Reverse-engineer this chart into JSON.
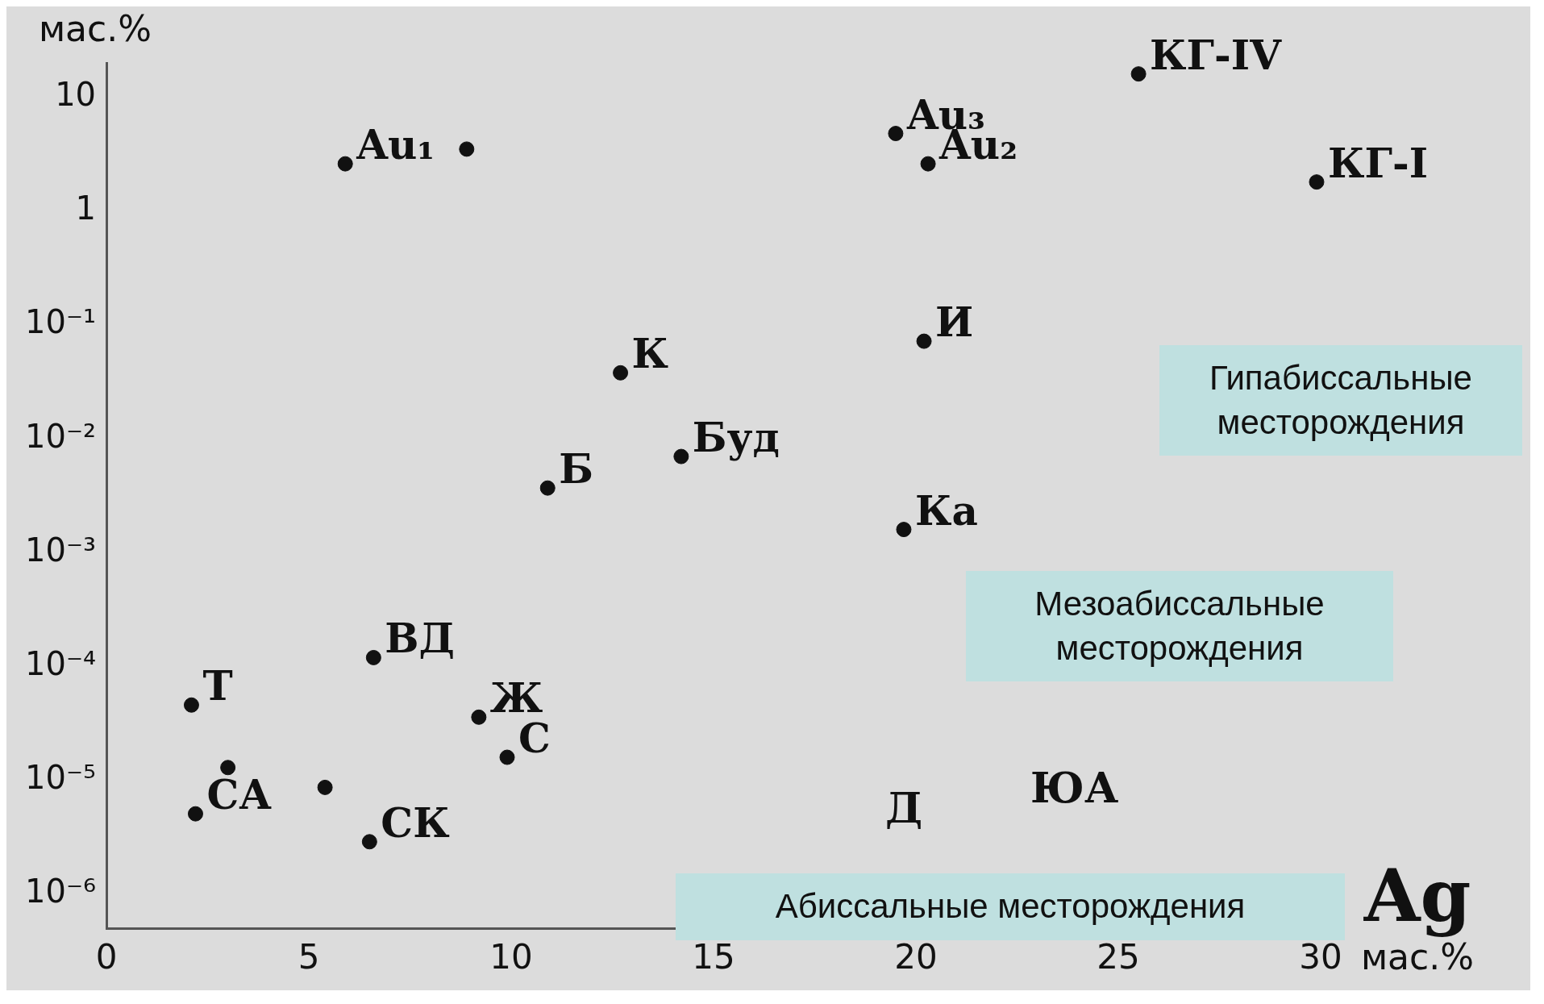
{
  "chart_data": {
    "type": "scatter",
    "xlabel": "Ag мас.%",
    "ylabel": "мас.%",
    "log": "y",
    "xlim": [
      0,
      30
    ],
    "xticks": [
      0,
      5,
      10,
      15,
      20,
      25,
      30
    ],
    "ylim": [
      5e-07,
      20
    ],
    "yticks": [
      {
        "value": 1e-06,
        "label": "10⁻⁶"
      },
      {
        "value": 1e-05,
        "label": "10⁻⁵"
      },
      {
        "value": 0.0001,
        "label": "10⁻⁴"
      },
      {
        "value": 0.001,
        "label": "10⁻³"
      },
      {
        "value": 0.01,
        "label": "10⁻²"
      },
      {
        "value": 0.1,
        "label": "10⁻¹"
      },
      1,
      10
    ],
    "grid": false,
    "legend": false,
    "marker": "circle",
    "series": [
      {
        "color": "#111111",
        "x": [
          5.9,
          8.9,
          19.5,
          20.3,
          25.5,
          29.9,
          12.7,
          20.2,
          14.2,
          10.9,
          19.7,
          6.6,
          2.1,
          9.2,
          9.9,
          3.0,
          5.4,
          2.2,
          6.5
        ],
        "values": [
          2.6,
          3.5,
          4.8,
          2.6,
          16,
          1.8,
          0.038,
          0.072,
          0.007,
          0.0037,
          0.0016,
          0.00012,
          4.6e-05,
          3.6e-05,
          1.6e-05,
          1.3e-05,
          8.7e-06,
          5.1e-06,
          2.9e-06
        ]
      }
    ],
    "annotations": [
      {
        "text": "Au₁",
        "x": 5.9,
        "y": 2.6
      },
      {
        "text": "Au₂",
        "x": 20.3,
        "y": 2.6
      },
      {
        "text": "Au₃",
        "x": 19.5,
        "y": 4.8
      },
      {
        "text": "КГ-IV",
        "x": 25.5,
        "y": 16
      },
      {
        "text": "КГ-I",
        "x": 29.9,
        "y": 1.8
      },
      {
        "text": "К",
        "x": 12.7,
        "y": 0.038
      },
      {
        "text": "И",
        "x": 20.2,
        "y": 0.072
      },
      {
        "text": "Буд",
        "x": 14.2,
        "y": 0.007
      },
      {
        "text": "Б",
        "x": 10.9,
        "y": 0.0037
      },
      {
        "text": "Ка",
        "x": 19.7,
        "y": 0.0016
      },
      {
        "text": "ВД",
        "x": 6.6,
        "y": 0.00012
      },
      {
        "text": "Т",
        "x": 2.1,
        "y": 4.6e-05
      },
      {
        "text": "Ж",
        "x": 9.2,
        "y": 3.6e-05
      },
      {
        "text": "С",
        "x": 9.9,
        "y": 1.6e-05
      },
      {
        "text": "СА",
        "x": 2.2,
        "y": 5.1e-06
      },
      {
        "text": "СК",
        "x": 6.5,
        "y": 2.9e-06
      },
      "ЮА",
      "Д",
      "Гипабиссальные месторождения",
      "Мезоабиссальные месторождения",
      "Абиссальные  месторождения"
    ]
  }
}
